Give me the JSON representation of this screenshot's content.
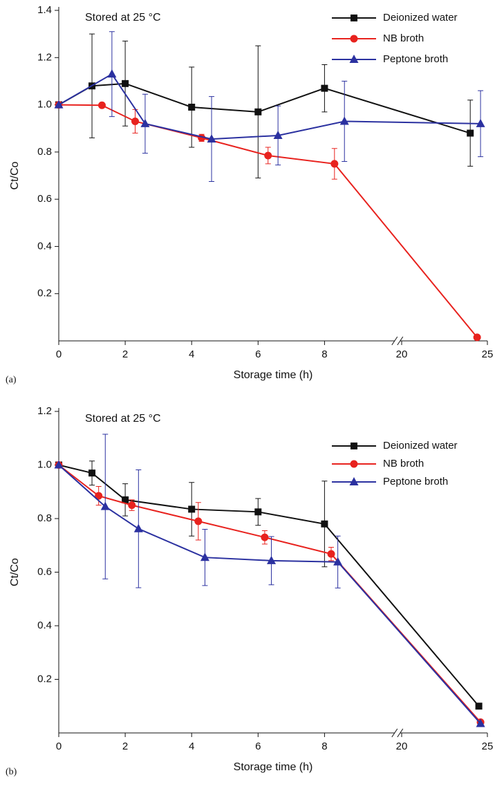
{
  "chart_data": [
    {
      "type": "line",
      "label": "(a)",
      "annotation": "Stored at 25 °C",
      "xlabel": "Storage time (h)",
      "ylabel": "Ct/Co",
      "xlim": [
        0,
        25
      ],
      "xticks": [
        0,
        2,
        4,
        6,
        8,
        20,
        25
      ],
      "x_break": true,
      "ylim": [
        0,
        1.4
      ],
      "yticks": [
        0.2,
        0.4,
        0.6,
        0.8,
        {
          "value": 1.0,
          "label": "1.0"
        },
        1.2,
        1.4
      ],
      "legend": "upper right",
      "series": [
        {
          "name": "Deionized water",
          "color": "#111111",
          "marker": "square",
          "x": [
            0,
            1,
            2,
            4,
            6,
            8,
            24.0
          ],
          "values": [
            1.0,
            1.08,
            1.09,
            0.99,
            0.97,
            1.07,
            0.88
          ],
          "errors": [
            0,
            0.22,
            0.18,
            0.17,
            0.28,
            0.1,
            0.14
          ]
        },
        {
          "name": "NB broth",
          "color": "#e8221e",
          "marker": "circle",
          "x": [
            0,
            1.3,
            2.3,
            4.3,
            6.3,
            8.3,
            24.4
          ],
          "values": [
            1.0,
            0.998,
            0.93,
            0.86,
            0.785,
            0.75,
            0.015
          ],
          "errors": [
            0,
            0,
            0.05,
            0.015,
            0.035,
            0.065,
            0
          ]
        },
        {
          "name": "Peptone broth",
          "color": "#2b31a0",
          "marker": "triangle",
          "x": [
            0,
            1.6,
            2.6,
            4.6,
            6.6,
            8.6,
            24.6
          ],
          "values": [
            1.0,
            1.13,
            0.92,
            0.855,
            0.87,
            0.93,
            0.92
          ],
          "errors": [
            0,
            0.18,
            0.125,
            0.18,
            0.125,
            0.17,
            0.14
          ]
        }
      ]
    },
    {
      "type": "line",
      "label": "(b)",
      "annotation": "Stored at 25 °C",
      "xlabel": "Storage time (h)",
      "ylabel": "Ct/Co",
      "xlim": [
        0,
        25
      ],
      "xticks": [
        0,
        2,
        4,
        6,
        8,
        20,
        25
      ],
      "x_break": true,
      "ylim": [
        0,
        1.2
      ],
      "yticks": [
        0.2,
        0.4,
        0.6,
        0.8,
        {
          "value": 1.0,
          "label": "1.0"
        },
        1.2
      ],
      "legend": "upper right",
      "series": [
        {
          "name": "Deionized water",
          "color": "#111111",
          "marker": "square",
          "x": [
            0,
            1,
            2,
            4,
            6,
            8,
            24.5
          ],
          "values": [
            1.0,
            0.97,
            0.87,
            0.835,
            0.825,
            0.78,
            0.1
          ],
          "errors": [
            0,
            0.045,
            0.06,
            0.1,
            0.05,
            0.16,
            0
          ]
        },
        {
          "name": "NB broth",
          "color": "#e8221e",
          "marker": "circle",
          "x": [
            0,
            1.2,
            2.2,
            4.2,
            6.2,
            8.2,
            24.6
          ],
          "values": [
            1.0,
            0.885,
            0.85,
            0.79,
            0.73,
            0.668,
            0.04
          ],
          "errors": [
            0,
            0.035,
            0.02,
            0.07,
            0.025,
            0.025,
            0
          ]
        },
        {
          "name": "Peptone broth",
          "color": "#2b31a0",
          "marker": "triangle",
          "x": [
            0,
            1.4,
            2.4,
            4.4,
            6.4,
            8.4,
            24.6
          ],
          "values": [
            1.0,
            0.845,
            0.762,
            0.655,
            0.643,
            0.638,
            0.035
          ],
          "errors": [
            0,
            0.27,
            0.22,
            0.105,
            0.09,
            0.097,
            0
          ]
        }
      ]
    }
  ]
}
